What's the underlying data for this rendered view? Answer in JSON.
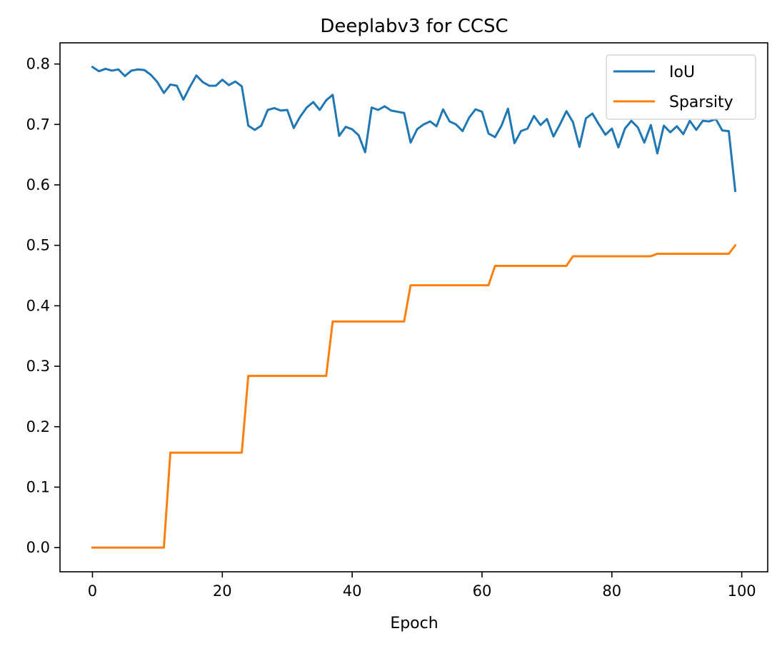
{
  "chart_data": {
    "type": "line",
    "title": "Deeplabv3 for CCSC",
    "xlabel": "Epoch",
    "ylabel": "",
    "xlim": [
      -5,
      104
    ],
    "ylim": [
      -0.04,
      0.835
    ],
    "xticks": [
      0,
      20,
      40,
      60,
      80,
      100
    ],
    "yticks": [
      0.0,
      0.1,
      0.2,
      0.3,
      0.4,
      0.5,
      0.6,
      0.7,
      0.8
    ],
    "ytick_labels": [
      "0.0",
      "0.1",
      "0.2",
      "0.3",
      "0.4",
      "0.5",
      "0.6",
      "0.7",
      "0.8"
    ],
    "xtick_labels": [
      "0",
      "20",
      "40",
      "60",
      "80",
      "100"
    ],
    "grid": false,
    "legend_position": "top-right",
    "series": [
      {
        "name": "IoU",
        "color": "#1f77b4",
        "x": [
          0,
          1,
          2,
          3,
          4,
          5,
          6,
          7,
          8,
          9,
          10,
          11,
          12,
          13,
          14,
          15,
          16,
          17,
          18,
          19,
          20,
          21,
          22,
          23,
          24,
          25,
          26,
          27,
          28,
          29,
          30,
          31,
          32,
          33,
          34,
          35,
          36,
          37,
          38,
          39,
          40,
          41,
          42,
          43,
          44,
          45,
          46,
          47,
          48,
          49,
          50,
          51,
          52,
          53,
          54,
          55,
          56,
          57,
          58,
          59,
          60,
          61,
          62,
          63,
          64,
          65,
          66,
          67,
          68,
          69,
          70,
          71,
          72,
          73,
          74,
          75,
          76,
          77,
          78,
          79,
          80,
          81,
          82,
          83,
          84,
          85,
          86,
          87,
          88,
          89,
          90,
          91,
          92,
          93,
          94,
          95,
          96,
          97,
          98,
          99
        ],
        "values": [
          0.795,
          0.788,
          0.792,
          0.789,
          0.791,
          0.78,
          0.789,
          0.791,
          0.79,
          0.782,
          0.77,
          0.752,
          0.766,
          0.764,
          0.741,
          0.762,
          0.781,
          0.77,
          0.764,
          0.764,
          0.774,
          0.765,
          0.771,
          0.763,
          0.698,
          0.691,
          0.698,
          0.724,
          0.727,
          0.723,
          0.724,
          0.694,
          0.713,
          0.728,
          0.737,
          0.724,
          0.74,
          0.749,
          0.681,
          0.696,
          0.692,
          0.682,
          0.654,
          0.728,
          0.724,
          0.73,
          0.723,
          0.721,
          0.719,
          0.67,
          0.692,
          0.7,
          0.705,
          0.697,
          0.725,
          0.705,
          0.7,
          0.689,
          0.711,
          0.725,
          0.721,
          0.685,
          0.679,
          0.698,
          0.726,
          0.669,
          0.689,
          0.693,
          0.714,
          0.699,
          0.709,
          0.68,
          0.7,
          0.722,
          0.704,
          0.663,
          0.71,
          0.718,
          0.7,
          0.683,
          0.693,
          0.662,
          0.693,
          0.706,
          0.695,
          0.67,
          0.699,
          0.652,
          0.698,
          0.687,
          0.697,
          0.684,
          0.706,
          0.691,
          0.706,
          0.705,
          0.709,
          0.69,
          0.689,
          0.59
        ]
      },
      {
        "name": "Sparsity",
        "color": "#ff7f0e",
        "x": [
          0,
          1,
          2,
          3,
          4,
          5,
          6,
          7,
          8,
          9,
          10,
          11,
          12,
          13,
          14,
          15,
          16,
          17,
          18,
          19,
          20,
          21,
          22,
          23,
          24,
          25,
          26,
          27,
          28,
          29,
          30,
          31,
          32,
          33,
          34,
          35,
          36,
          37,
          38,
          39,
          40,
          41,
          42,
          43,
          44,
          45,
          46,
          47,
          48,
          49,
          50,
          51,
          52,
          53,
          54,
          55,
          56,
          57,
          58,
          59,
          60,
          61,
          62,
          63,
          64,
          65,
          66,
          67,
          68,
          69,
          70,
          71,
          72,
          73,
          74,
          75,
          76,
          77,
          78,
          79,
          80,
          81,
          82,
          83,
          84,
          85,
          86,
          87,
          88,
          89,
          90,
          91,
          92,
          93,
          94,
          95,
          96,
          97,
          98,
          99
        ],
        "values": [
          0,
          0,
          0,
          0,
          0,
          0,
          0,
          0,
          0,
          0,
          0,
          0,
          0.157,
          0.157,
          0.157,
          0.157,
          0.157,
          0.157,
          0.157,
          0.157,
          0.157,
          0.157,
          0.157,
          0.157,
          0.284,
          0.284,
          0.284,
          0.284,
          0.284,
          0.284,
          0.284,
          0.284,
          0.284,
          0.284,
          0.284,
          0.284,
          0.284,
          0.374,
          0.374,
          0.374,
          0.374,
          0.374,
          0.374,
          0.374,
          0.374,
          0.374,
          0.374,
          0.374,
          0.374,
          0.434,
          0.434,
          0.434,
          0.434,
          0.434,
          0.434,
          0.434,
          0.434,
          0.434,
          0.434,
          0.434,
          0.434,
          0.434,
          0.466,
          0.466,
          0.466,
          0.466,
          0.466,
          0.466,
          0.466,
          0.466,
          0.466,
          0.466,
          0.466,
          0.466,
          0.482,
          0.482,
          0.482,
          0.482,
          0.482,
          0.482,
          0.482,
          0.482,
          0.482,
          0.482,
          0.482,
          0.482,
          0.482,
          0.486,
          0.486,
          0.486,
          0.486,
          0.486,
          0.486,
          0.486,
          0.486,
          0.486,
          0.486,
          0.486,
          0.486,
          0.5
        ]
      }
    ]
  }
}
